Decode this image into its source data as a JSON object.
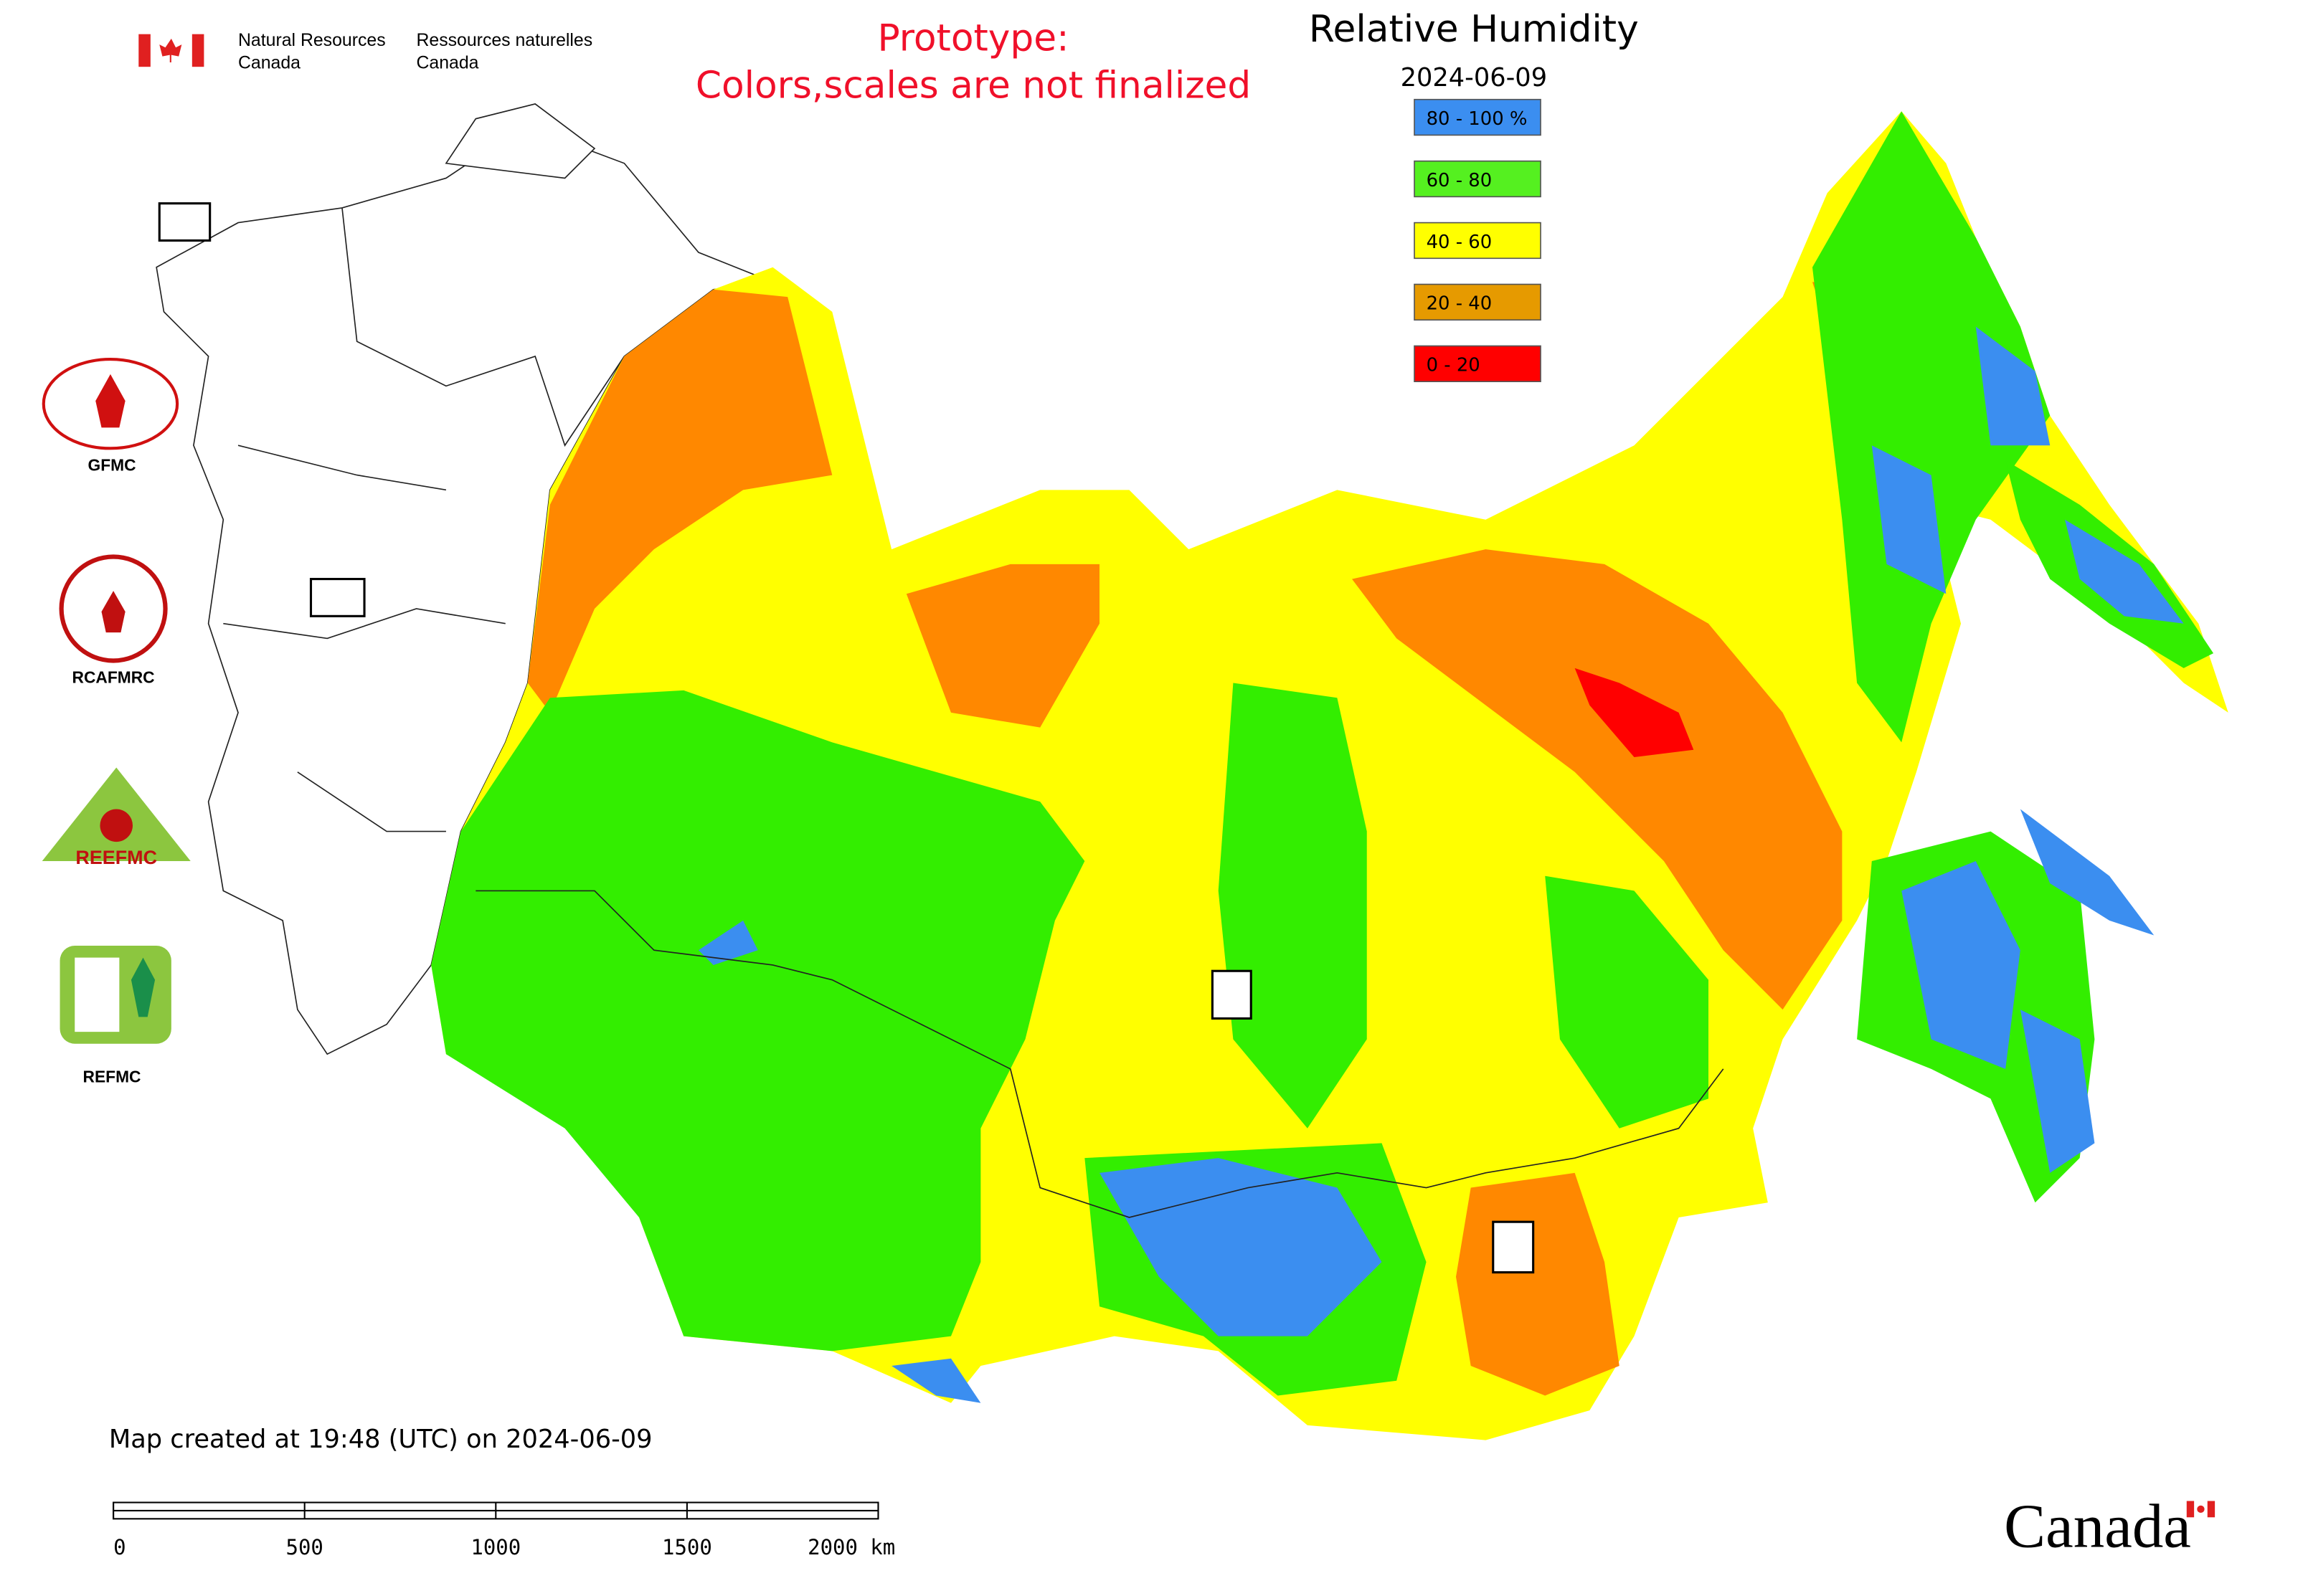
{
  "header": {
    "org_en": [
      "Natural Resources",
      "Canada"
    ],
    "org_fr": [
      "Ressources naturelles",
      "Canada"
    ]
  },
  "notice": [
    "Prototype:",
    "Colors,scales are not finalized"
  ],
  "map": {
    "title": "Relative Humidity",
    "date": "2024-06-09",
    "legend": [
      {
        "label": "80 - 100 %",
        "color": "#3b8ef0"
      },
      {
        "label": "60 - 80",
        "color": "#55f020"
      },
      {
        "label": "40 - 60",
        "color": "#ffff00"
      },
      {
        "label": "20 - 40",
        "color": "#e69a00"
      },
      {
        "label": "0 - 20",
        "color": "#ff0000"
      }
    ]
  },
  "logos": [
    "GFMC",
    "RCAFMRC",
    "REEFMC",
    "REFMC"
  ],
  "created": "Map created at 19:48 (UTC) on 2024-06-09",
  "scale_bar": [
    "0",
    "500",
    "1000",
    "1500",
    "2000 km"
  ],
  "wordmark": "Canada"
}
